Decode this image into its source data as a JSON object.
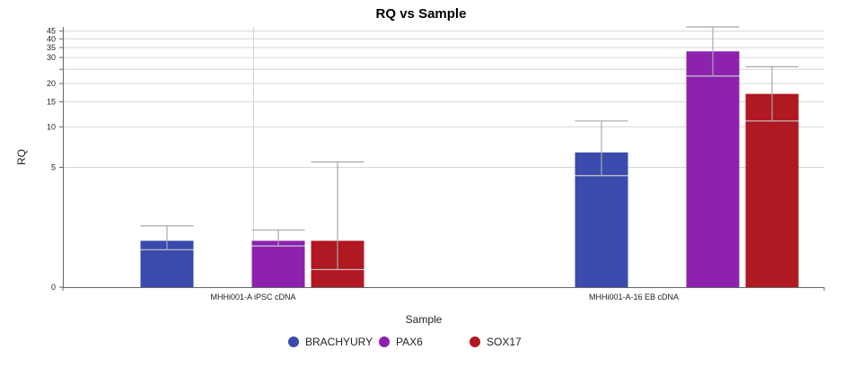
{
  "chart_data": {
    "type": "bar",
    "title": "RQ vs Sample",
    "xlabel": "Sample",
    "ylabel": "RQ",
    "scale": "log",
    "y_ticks": [
      0,
      5,
      10,
      15,
      20,
      25,
      30,
      35,
      40,
      45
    ],
    "y_tick_labels": [
      "0",
      "5",
      "10",
      "15",
      "20",
      "",
      "30",
      "35",
      "40",
      "45"
    ],
    "grid": true,
    "legend_position": "bottom",
    "categories": [
      "MHHi001-A iPSC cDNA",
      "MHHi001-A-16 EB cDNA"
    ],
    "series": [
      {
        "name": "BRACHYURY",
        "color": "#3a4bad",
        "values": [
          1.0,
          6.5
        ],
        "error_low": [
          0.75,
          4.3
        ],
        "error_high": [
          1.5,
          11.0
        ]
      },
      {
        "name": "PAX6",
        "color": "#8c22ad",
        "values": [
          1.0,
          33.0
        ],
        "error_low": [
          0.85,
          22.5
        ],
        "error_high": [
          1.35,
          48.0
        ]
      },
      {
        "name": "SOX17",
        "color": "#b01822",
        "values": [
          1.0,
          17.0
        ],
        "error_low": [
          0.3,
          11.0
        ],
        "error_high": [
          5.5,
          26.0
        ]
      }
    ]
  }
}
